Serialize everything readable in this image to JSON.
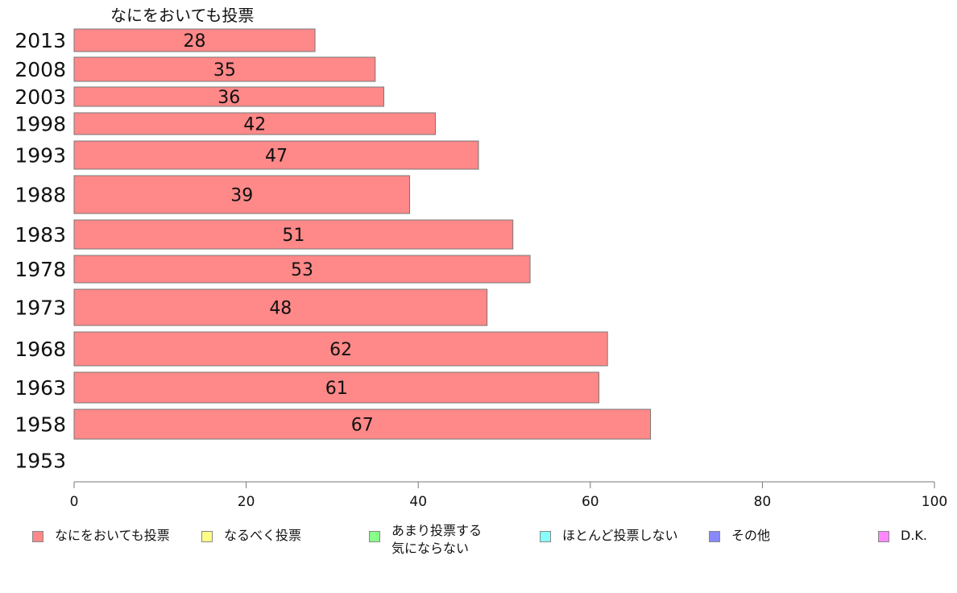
{
  "chart_data": {
    "type": "bar",
    "orientation": "horizontal",
    "stacked": true,
    "title": "なにをおいても投票",
    "categories": [
      "2013",
      "2008",
      "2003",
      "1998",
      "1993",
      "1988",
      "1983",
      "1978",
      "1973",
      "1968",
      "1963",
      "1958",
      "1953"
    ],
    "series": [
      {
        "name": "なにをおいても投票",
        "color": "#ff8888",
        "values": [
          28,
          35,
          36,
          42,
          47,
          39,
          51,
          53,
          48,
          62,
          61,
          67,
          null
        ]
      },
      {
        "name": "なるべく投票",
        "color": "#ffff88",
        "values": [
          null,
          null,
          null,
          null,
          null,
          null,
          null,
          null,
          null,
          null,
          null,
          null,
          null
        ]
      },
      {
        "name": "あまり投票する\n気にならない",
        "color": "#88ff88",
        "values": [
          null,
          null,
          null,
          null,
          null,
          null,
          null,
          null,
          null,
          null,
          null,
          null,
          null
        ]
      },
      {
        "name": "ほとんど投票しない",
        "color": "#88ffff",
        "values": [
          null,
          null,
          null,
          null,
          null,
          null,
          null,
          null,
          null,
          null,
          null,
          null,
          null
        ]
      },
      {
        "name": "その他",
        "color": "#8888ff",
        "values": [
          null,
          null,
          null,
          null,
          null,
          null,
          null,
          null,
          null,
          null,
          null,
          null,
          null
        ]
      },
      {
        "name": "D.K.",
        "color": "#ff88ff",
        "values": [
          null,
          null,
          null,
          null,
          null,
          null,
          null,
          null,
          null,
          null,
          null,
          null,
          null
        ]
      }
    ],
    "xlim": [
      0,
      100
    ],
    "xticks": [
      0,
      20,
      40,
      60,
      80,
      100
    ],
    "grid": false,
    "legend": "bottom"
  }
}
